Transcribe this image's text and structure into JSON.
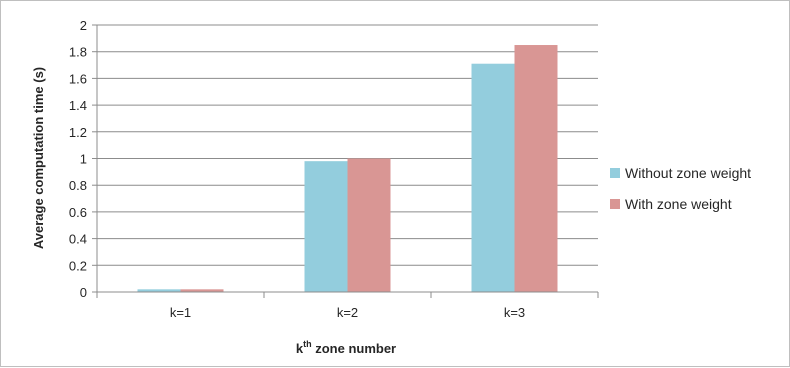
{
  "chart_data": {
    "type": "bar",
    "categories": [
      "k=1",
      "k=2",
      "k=3"
    ],
    "series": [
      {
        "name": "Without zone weight",
        "color": "#93CDDD",
        "values": [
          0.02,
          0.98,
          1.71
        ]
      },
      {
        "name": "With zone weight",
        "color": "#D99694",
        "values": [
          0.02,
          1.0,
          1.85
        ]
      }
    ],
    "ylabel": "Average computation time (s)",
    "xlabel": {
      "base": "k",
      "sup": "th",
      "rest": " zone number"
    },
    "ylim": [
      0,
      2
    ],
    "yticks": [
      "0",
      "0.2",
      "0.4",
      "0.6",
      "0.8",
      "1",
      "1.2",
      "1.4",
      "1.6",
      "1.8",
      "2"
    ],
    "grid": true,
    "legend_position": "right"
  }
}
